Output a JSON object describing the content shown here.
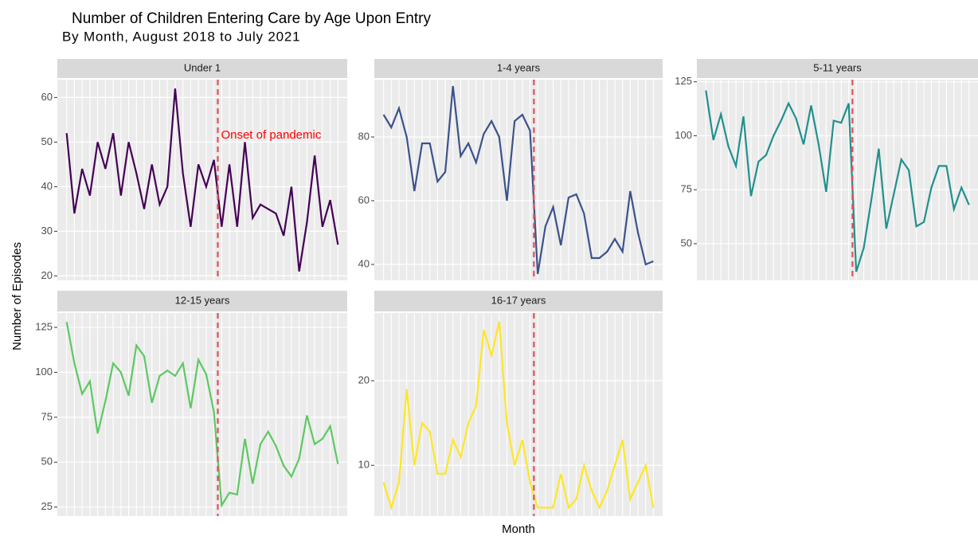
{
  "figure": {
    "title": "Number of Children Entering Care by Age Upon Entry",
    "subtitle": "By Month, August 2018 to July 2021",
    "xlabel": "Month",
    "ylabel": "Number of Episodes"
  },
  "chart_data": [
    {
      "type": "line",
      "title": "Under 1",
      "color": "#440154",
      "annotation": "Onset of pandemic",
      "vline": 19.5,
      "categories": [
        null,
        null,
        null,
        null,
        null,
        null,
        null,
        null,
        null,
        null,
        null,
        null,
        null,
        null,
        null,
        null,
        null,
        null,
        null,
        null,
        null,
        null,
        null,
        null,
        null,
        null,
        null,
        null,
        null,
        null,
        null,
        null,
        null,
        null,
        null,
        null
      ],
      "values": [
        52,
        34,
        44,
        38,
        50,
        44,
        52,
        38,
        50,
        43,
        35,
        45,
        36,
        40,
        62,
        43,
        31,
        45,
        40,
        46,
        31,
        45,
        31,
        50,
        33,
        36,
        35,
        34,
        29,
        40,
        21,
        32,
        47,
        31,
        37,
        27
      ],
      "ylim": [
        19,
        64
      ],
      "yticks": [
        20,
        30,
        40,
        50,
        60
      ]
    },
    {
      "type": "line",
      "title": "1-4 years",
      "color": "#3b528b",
      "vline": 19.5,
      "categories": [
        null,
        null,
        null,
        null,
        null,
        null,
        null,
        null,
        null,
        null,
        null,
        null,
        null,
        null,
        null,
        null,
        null,
        null,
        null,
        null,
        null,
        null,
        null,
        null,
        null,
        null,
        null,
        null,
        null,
        null,
        null,
        null,
        null,
        null,
        null,
        null
      ],
      "values": [
        87,
        83,
        89,
        80,
        63,
        78,
        78,
        66,
        69,
        96,
        74,
        78,
        72,
        81,
        85,
        80,
        60,
        85,
        87,
        82,
        37,
        52,
        58,
        46,
        61,
        62,
        56,
        42,
        42,
        44,
        48,
        44,
        63,
        50,
        40,
        41
      ],
      "ylim": [
        35,
        98
      ],
      "yticks": [
        40,
        60,
        80
      ]
    },
    {
      "type": "line",
      "title": "5-11 years",
      "color": "#21908d",
      "vline": 19.5,
      "categories": [
        null,
        null,
        null,
        null,
        null,
        null,
        null,
        null,
        null,
        null,
        null,
        null,
        null,
        null,
        null,
        null,
        null,
        null,
        null,
        null,
        null,
        null,
        null,
        null,
        null,
        null,
        null,
        null,
        null,
        null,
        null,
        null,
        null,
        null,
        null,
        null
      ],
      "values": [
        121,
        98,
        110,
        95,
        86,
        109,
        72,
        88,
        91,
        100,
        107,
        115,
        108,
        96,
        114,
        96,
        74,
        107,
        106,
        115,
        37,
        48,
        70,
        94,
        57,
        73,
        89,
        84,
        58,
        60,
        76,
        86,
        86,
        66,
        76,
        68
      ],
      "ylim": [
        33,
        126
      ],
      "yticks": [
        50,
        75,
        100,
        125
      ]
    },
    {
      "type": "line",
      "title": "12-15 years",
      "color": "#5dc863",
      "vline": 19.5,
      "categories": [
        null,
        null,
        null,
        null,
        null,
        null,
        null,
        null,
        null,
        null,
        null,
        null,
        null,
        null,
        null,
        null,
        null,
        null,
        null,
        null,
        null,
        null,
        null,
        null,
        null,
        null,
        null,
        null,
        null,
        null,
        null,
        null,
        null,
        null,
        null,
        null
      ],
      "values": [
        128,
        105,
        88,
        95,
        66,
        84,
        105,
        100,
        87,
        115,
        109,
        83,
        98,
        101,
        98,
        105,
        80,
        107,
        99,
        78,
        26,
        33,
        32,
        63,
        38,
        60,
        67,
        59,
        48,
        42,
        52,
        76,
        60,
        63,
        70,
        49
      ],
      "ylim": [
        20,
        133
      ],
      "yticks": [
        25,
        50,
        75,
        100,
        125
      ]
    },
    {
      "type": "line",
      "title": "16-17 years",
      "color": "#fde725",
      "vline": 19.5,
      "categories": [
        null,
        null,
        null,
        null,
        null,
        null,
        null,
        null,
        null,
        null,
        null,
        null,
        null,
        null,
        null,
        null,
        null,
        null,
        null,
        null,
        null,
        null,
        null,
        null,
        null,
        null,
        null,
        null,
        null,
        null,
        null,
        null,
        null,
        null,
        null,
        null
      ],
      "values": [
        8,
        5,
        8,
        19,
        10,
        15,
        14,
        9,
        9,
        13,
        11,
        15,
        17,
        26,
        23,
        27,
        15,
        10,
        13,
        8,
        5,
        5,
        5,
        9,
        5,
        6,
        10,
        7,
        5,
        7,
        10,
        13,
        6,
        8,
        10,
        5
      ],
      "ylim": [
        4,
        28
      ],
      "yticks": [
        10,
        20
      ]
    }
  ]
}
